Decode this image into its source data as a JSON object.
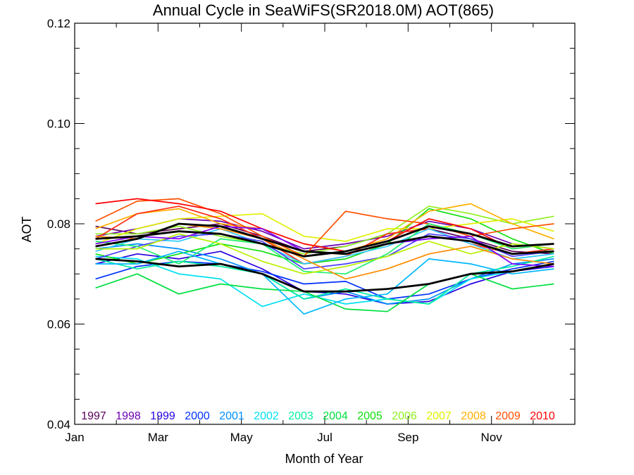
{
  "chart_data": {
    "type": "line",
    "title": "Annual Cycle in SeaWiFS(SR2018.0M) AOT(865)",
    "xlabel": "Month of Year",
    "ylabel": "AOT",
    "xlim": [
      1,
      13
    ],
    "ylim": [
      0.04,
      0.12
    ],
    "x_ticks": [
      {
        "value": 1,
        "label": "Jan"
      },
      {
        "value": 3,
        "label": "Mar"
      },
      {
        "value": 5,
        "label": "May"
      },
      {
        "value": 7,
        "label": "Jul"
      },
      {
        "value": 9,
        "label": "Sep"
      },
      {
        "value": 11,
        "label": "Nov"
      }
    ],
    "y_ticks": [
      {
        "value": 0.04,
        "label": "0.04"
      },
      {
        "value": 0.06,
        "label": "0.06"
      },
      {
        "value": 0.08,
        "label": "0.08"
      },
      {
        "value": 0.1,
        "label": "0.10"
      },
      {
        "value": 0.12,
        "label": "0.12"
      }
    ],
    "x": [
      1.5,
      2.5,
      3.5,
      4.5,
      5.5,
      6.5,
      7.5,
      8.5,
      9.5,
      10.5,
      11.5,
      12.5
    ],
    "legend_position": "bottom-inside",
    "series": [
      {
        "name": "1997",
        "color": "#5a005a",
        "values": [
          0.0795,
          0.078,
          0.079,
          0.08,
          0.0775,
          0.0745,
          0.0755,
          0.078,
          0.079,
          0.077,
          0.0745,
          0.074
        ]
      },
      {
        "name": "1998",
        "color": "#6a00b0",
        "values": [
          0.0775,
          0.079,
          0.081,
          0.0805,
          0.0785,
          0.075,
          0.076,
          0.0775,
          0.0805,
          0.079,
          0.076,
          0.075
        ]
      },
      {
        "name": "1999",
        "color": "#2a00e0",
        "values": [
          0.072,
          0.074,
          0.073,
          0.0745,
          0.071,
          0.0665,
          0.066,
          0.064,
          0.0645,
          0.068,
          0.0705,
          0.0715
        ]
      },
      {
        "name": "2000",
        "color": "#0030ff",
        "values": [
          0.069,
          0.0715,
          0.0725,
          0.072,
          0.0705,
          0.068,
          0.0685,
          0.065,
          0.066,
          0.069,
          0.071,
          0.0725
        ]
      },
      {
        "name": "2001",
        "color": "#0090ff",
        "values": [
          0.075,
          0.076,
          0.075,
          0.073,
          0.07,
          0.065,
          0.0665,
          0.064,
          0.065,
          0.069,
          0.072,
          0.073
        ]
      },
      {
        "name": "2002",
        "color": "#00e0f0",
        "values": [
          0.0735,
          0.073,
          0.07,
          0.069,
          0.0635,
          0.066,
          0.064,
          0.065,
          0.064,
          0.069,
          0.0705,
          0.072
        ]
      },
      {
        "name": "2003",
        "color": "#00f0a0",
        "values": [
          0.073,
          0.071,
          0.0725,
          0.0715,
          0.07,
          0.065,
          0.067,
          0.065,
          0.064,
          0.07,
          0.0715,
          0.0735
        ]
      },
      {
        "name": "2004",
        "color": "#00e040",
        "values": [
          0.0672,
          0.07,
          0.066,
          0.068,
          0.067,
          0.0665,
          0.063,
          0.0625,
          0.068,
          0.07,
          0.067,
          0.068
        ]
      },
      {
        "name": "2005",
        "color": "#10e010",
        "values": [
          0.074,
          0.072,
          0.074,
          0.076,
          0.0745,
          0.072,
          0.073,
          0.076,
          0.083,
          0.081,
          0.077,
          0.074
        ]
      },
      {
        "name": "2006",
        "color": "#90f020",
        "values": [
          0.078,
          0.078,
          0.0795,
          0.0775,
          0.076,
          0.074,
          0.0755,
          0.078,
          0.0835,
          0.082,
          0.08,
          0.0815
        ]
      },
      {
        "name": "2007",
        "color": "#e0f000",
        "values": [
          0.076,
          0.079,
          0.081,
          0.0815,
          0.082,
          0.0775,
          0.0765,
          0.079,
          0.079,
          0.08,
          0.081,
          0.0785
        ]
      },
      {
        "name": "2008",
        "color": "#ffb000",
        "values": [
          0.079,
          0.082,
          0.083,
          0.08,
          0.079,
          0.076,
          0.0745,
          0.077,
          0.0825,
          0.084,
          0.08,
          0.077
        ]
      },
      {
        "name": "2009",
        "color": "#ff5000",
        "values": [
          0.0805,
          0.0845,
          0.085,
          0.082,
          0.0775,
          0.0735,
          0.0825,
          0.081,
          0.08,
          0.0775,
          0.079,
          0.08
        ]
      },
      {
        "name": "2010",
        "color": "#ff0000",
        "values": [
          0.084,
          0.085,
          0.084,
          0.0825,
          0.079,
          0.076,
          0.0745,
          0.0765,
          0.081,
          0.079,
          0.075,
          0.076
        ]
      },
      {
        "color": "#ff2a10",
        "values": [
          0.077,
          0.082,
          0.0835,
          0.081,
          0.077,
          0.072,
          0.0735,
          0.078,
          0.079,
          0.076,
          0.074,
          0.075
        ]
      },
      {
        "color": "#30c8ff",
        "values": [
          0.0745,
          0.077,
          0.0765,
          0.079,
          0.076,
          0.072,
          0.0735,
          0.0755,
          0.079,
          0.076,
          0.073,
          0.074
        ]
      },
      {
        "color": "#4a40ff",
        "values": [
          0.073,
          0.0755,
          0.0775,
          0.078,
          0.0765,
          0.071,
          0.072,
          0.0735,
          0.078,
          0.077,
          0.0735,
          0.0745
        ]
      },
      {
        "color": "#20f070",
        "values": [
          0.0765,
          0.0755,
          0.072,
          0.077,
          0.076,
          0.0705,
          0.07,
          0.074,
          0.08,
          0.078,
          0.075,
          0.076
        ]
      },
      {
        "color": "#b8f000",
        "values": [
          0.075,
          0.075,
          0.078,
          0.076,
          0.0725,
          0.07,
          0.0715,
          0.0735,
          0.0765,
          0.074,
          0.076,
          0.075
        ]
      },
      {
        "color": "#ff8a00",
        "values": [
          0.0775,
          0.077,
          0.08,
          0.079,
          0.077,
          0.073,
          0.069,
          0.071,
          0.074,
          0.0755,
          0.073,
          0.072
        ]
      },
      {
        "color": "#00b8ff",
        "values": [
          0.072,
          0.072,
          0.0745,
          0.072,
          0.07,
          0.062,
          0.065,
          0.066,
          0.073,
          0.072,
          0.07,
          0.071
        ]
      },
      {
        "color": "#8000ff",
        "values": [
          0.076,
          0.0775,
          0.077,
          0.0795,
          0.079,
          0.0745,
          0.074,
          0.076,
          0.077,
          0.0775,
          0.072,
          0.0715
        ]
      },
      {
        "color": "#000000",
        "values": [
          0.077,
          0.0775,
          0.0785,
          0.078,
          0.076,
          0.0735,
          0.0745,
          0.0765,
          0.0795,
          0.078,
          0.0755,
          0.076
        ]
      },
      {
        "color": "#000000",
        "values": [
          0.0755,
          0.077,
          0.08,
          0.0795,
          0.077,
          0.0745,
          0.074,
          0.076,
          0.0775,
          0.0765,
          0.074,
          0.0745
        ]
      },
      {
        "color": "#000000",
        "values": [
          0.073,
          0.0725,
          0.0715,
          0.072,
          0.07,
          0.0665,
          0.0665,
          0.067,
          0.068,
          0.07,
          0.0705,
          0.072
        ]
      }
    ]
  }
}
